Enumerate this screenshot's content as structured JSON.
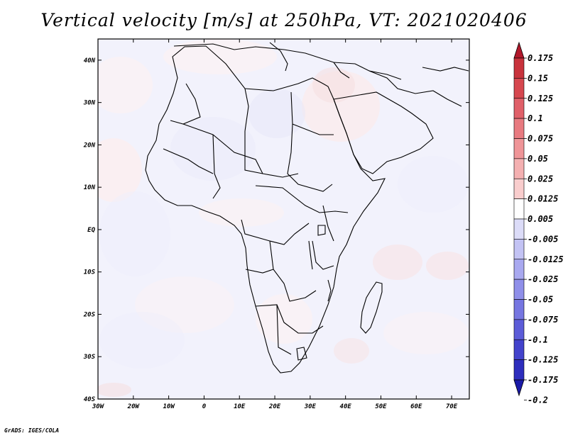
{
  "title": "Vertical velocity [m/s] at 250hPa, VT: 2021020406",
  "credit": "GrADS: IGES/COLA",
  "map": {
    "lat_labels": [
      "40N",
      "30N",
      "20N",
      "10N",
      "EQ",
      "10S",
      "20S",
      "30S",
      "40S"
    ],
    "lon_labels": [
      "30W",
      "20W",
      "10W",
      "0",
      "10E",
      "20E",
      "30E",
      "40E",
      "50E",
      "60E",
      "70E"
    ],
    "lon_range": [
      -30,
      75
    ],
    "lat_range": [
      -40,
      45
    ]
  },
  "colorbar": {
    "labels": [
      "0.175",
      "0.15",
      "0.125",
      "0.1",
      "0.075",
      "0.05",
      "0.025",
      "0.0125",
      "0.005",
      "-0.005",
      "-0.0125",
      "-0.025",
      "-0.05",
      "-0.075",
      "-0.1",
      "-0.125",
      "-0.175",
      "-0.2"
    ],
    "colors": [
      "#b2182b",
      "#c8333c",
      "#d6474f",
      "#e06069",
      "#e87a80",
      "#ef9598",
      "#f4b0b1",
      "#f9cdcd",
      "#ffffff",
      "#dcdcf8",
      "#c3c3f4",
      "#a9a9f0",
      "#8f8fe9",
      "#7676e1",
      "#5c5cd8",
      "#4343cc",
      "#2e2ebd",
      "#1a1aa8"
    ]
  }
}
